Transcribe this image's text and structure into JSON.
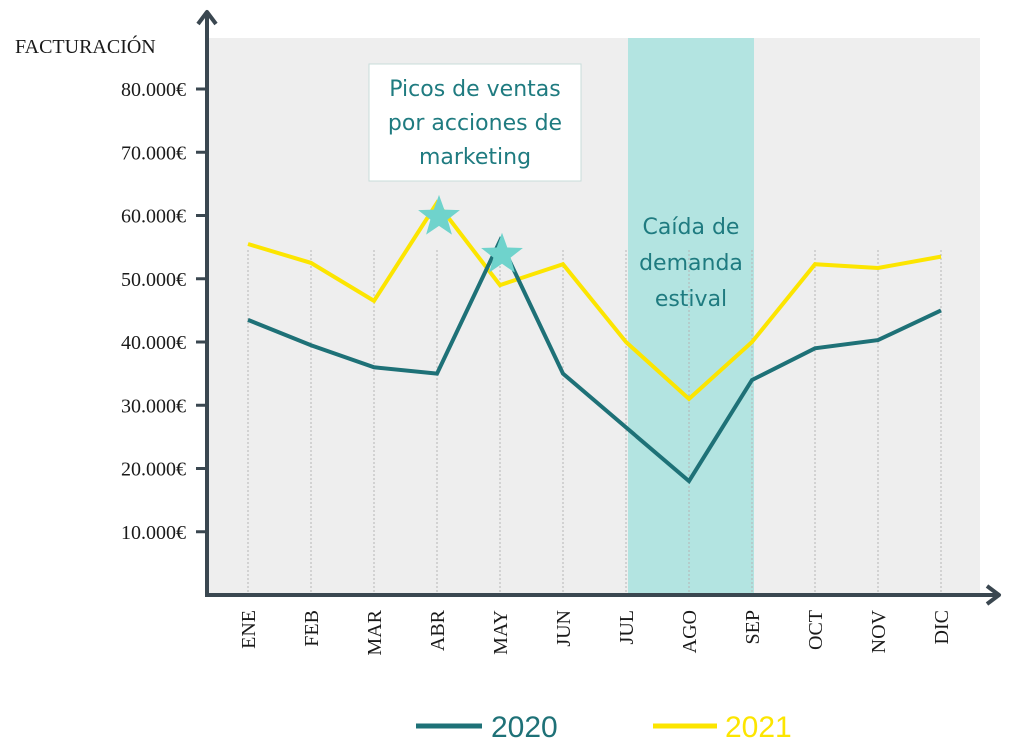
{
  "chart_data": {
    "type": "line",
    "ylabel": "FACTURACIÓN",
    "categories": [
      "ENE",
      "FEB",
      "MAR",
      "ABR",
      "MAY",
      "JUN",
      "JUL",
      "AGO",
      "SEP",
      "OCT",
      "NOV",
      "DIC"
    ],
    "yticks": [
      10000,
      20000,
      30000,
      40000,
      50000,
      60000,
      70000,
      80000
    ],
    "ytick_labels": [
      "10.000€",
      "20.000€",
      "30.000€",
      "40.000€",
      "50.000€",
      "60.000€",
      "70.000€",
      "80.000€"
    ],
    "ylim": [
      0,
      88000
    ],
    "series": [
      {
        "name": "2020",
        "color": "#1e7177",
        "values": [
          43500,
          39500,
          36000,
          35000,
          56000,
          35000,
          26500,
          18000,
          34000,
          39000,
          40300,
          45000
        ]
      },
      {
        "name": "2021",
        "color": "#fce500",
        "values": [
          55500,
          52500,
          46500,
          62000,
          49000,
          52300,
          40000,
          31000,
          40000,
          52300,
          51700,
          53500
        ]
      }
    ],
    "highlight_band": {
      "from": "JUL",
      "to": "SEP",
      "color": "#b3e4e1",
      "label_lines": [
        "Caída de",
        "demanda",
        "estival"
      ]
    },
    "callout": {
      "label_lines": [
        "Picos de ventas",
        "por acciones de",
        "marketing"
      ],
      "markers": [
        "ABR",
        "MAY"
      ],
      "marker_color": "#6fd3cc"
    },
    "legend": {
      "position": "bottom-center"
    },
    "colors": {
      "axis": "#3a4750",
      "plot_bg": "#eeeeee",
      "text_accent": "#1f7b80"
    }
  }
}
